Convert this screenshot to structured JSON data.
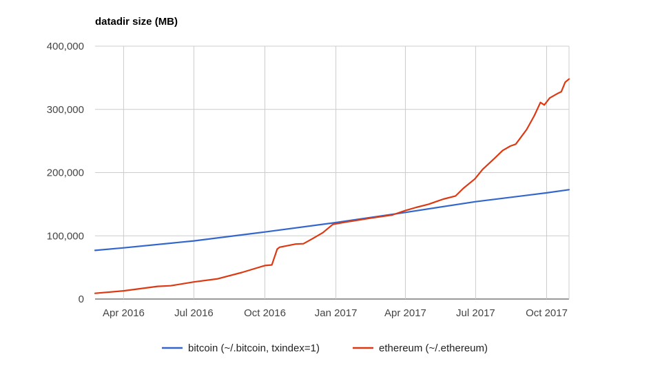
{
  "chart_data": {
    "type": "line",
    "title": "datadir size (MB)",
    "xlabel": "",
    "ylabel": "",
    "x_range": [
      "2016-02-24",
      "2017-10-30"
    ],
    "ylim": [
      0,
      400000
    ],
    "y_ticks": [
      {
        "value": 0,
        "label": "0"
      },
      {
        "value": 100000,
        "label": "100,000"
      },
      {
        "value": 200000,
        "label": "200,000"
      },
      {
        "value": 300000,
        "label": "300,000"
      },
      {
        "value": 400000,
        "label": "400,000"
      }
    ],
    "x_ticks": [
      {
        "date": "2016-04-01",
        "label": "Apr 2016"
      },
      {
        "date": "2016-07-01",
        "label": "Jul 2016"
      },
      {
        "date": "2016-10-01",
        "label": "Oct 2016"
      },
      {
        "date": "2017-01-01",
        "label": "Jan 2017"
      },
      {
        "date": "2017-04-01",
        "label": "Apr 2017"
      },
      {
        "date": "2017-07-01",
        "label": "Jul 2017"
      },
      {
        "date": "2017-10-01",
        "label": "Oct 2017"
      }
    ],
    "grid": true,
    "legend_position": "bottom",
    "series": [
      {
        "name": "bitcoin (~/.bitcoin, txindex=1)",
        "color": "#3366cc",
        "points": [
          [
            "2016-02-24",
            77000
          ],
          [
            "2016-04-01",
            81000
          ],
          [
            "2016-07-01",
            92000
          ],
          [
            "2016-10-01",
            106000
          ],
          [
            "2017-01-01",
            121000
          ],
          [
            "2017-04-01",
            137000
          ],
          [
            "2017-07-01",
            154000
          ],
          [
            "2017-10-01",
            168000
          ],
          [
            "2017-10-30",
            173000
          ]
        ]
      },
      {
        "name": "ethereum (~/.ethereum)",
        "color": "#dc3912",
        "points": [
          [
            "2016-02-24",
            9000
          ],
          [
            "2016-04-01",
            13000
          ],
          [
            "2016-05-15",
            20000
          ],
          [
            "2016-06-01",
            21000
          ],
          [
            "2016-07-01",
            27000
          ],
          [
            "2016-08-01",
            32000
          ],
          [
            "2016-09-01",
            42000
          ],
          [
            "2016-10-01",
            53000
          ],
          [
            "2016-10-10",
            54000
          ],
          [
            "2016-10-17",
            79000
          ],
          [
            "2016-10-20",
            82000
          ],
          [
            "2016-11-10",
            87000
          ],
          [
            "2016-11-20",
            87500
          ],
          [
            "2016-12-01",
            95000
          ],
          [
            "2016-12-15",
            105000
          ],
          [
            "2016-12-28",
            118000
          ],
          [
            "2017-01-15",
            122000
          ],
          [
            "2017-02-15",
            128000
          ],
          [
            "2017-03-15",
            133000
          ],
          [
            "2017-04-01",
            140000
          ],
          [
            "2017-04-15",
            145000
          ],
          [
            "2017-05-01",
            150000
          ],
          [
            "2017-05-20",
            158000
          ],
          [
            "2017-06-05",
            163000
          ],
          [
            "2017-06-15",
            175000
          ],
          [
            "2017-06-30",
            190000
          ],
          [
            "2017-07-10",
            205000
          ],
          [
            "2017-07-25",
            222000
          ],
          [
            "2017-08-05",
            235000
          ],
          [
            "2017-08-15",
            242000
          ],
          [
            "2017-08-22",
            245000
          ],
          [
            "2017-09-05",
            268000
          ],
          [
            "2017-09-15",
            290000
          ],
          [
            "2017-09-23",
            311000
          ],
          [
            "2017-09-28",
            307000
          ],
          [
            "2017-10-05",
            318000
          ],
          [
            "2017-10-15",
            325000
          ],
          [
            "2017-10-20",
            328000
          ],
          [
            "2017-10-25",
            343000
          ],
          [
            "2017-10-30",
            348000
          ]
        ]
      }
    ]
  }
}
